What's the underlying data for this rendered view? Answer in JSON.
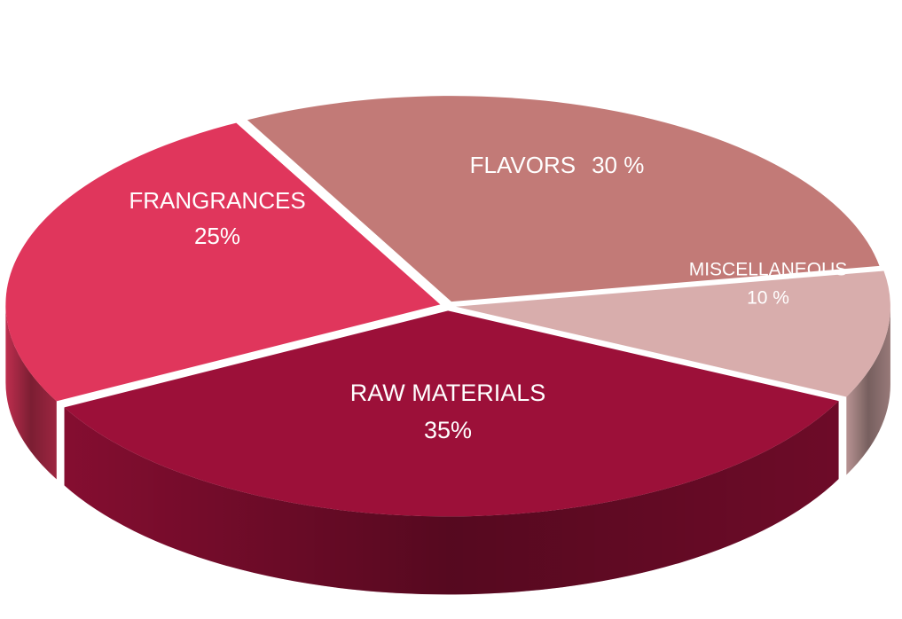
{
  "chart_data": {
    "type": "pie",
    "categories": [
      "MISCELLANEOUS",
      "RAW MATERIALS",
      "FRANGRANCES",
      "FLAVORS"
    ],
    "values": [
      10,
      35,
      25,
      30
    ],
    "value_labels": [
      "10 %",
      "35%",
      "25%",
      "30 %"
    ],
    "colors": [
      "#d8adac",
      "#9c1039",
      "#e0365c",
      "#c27a77"
    ]
  }
}
